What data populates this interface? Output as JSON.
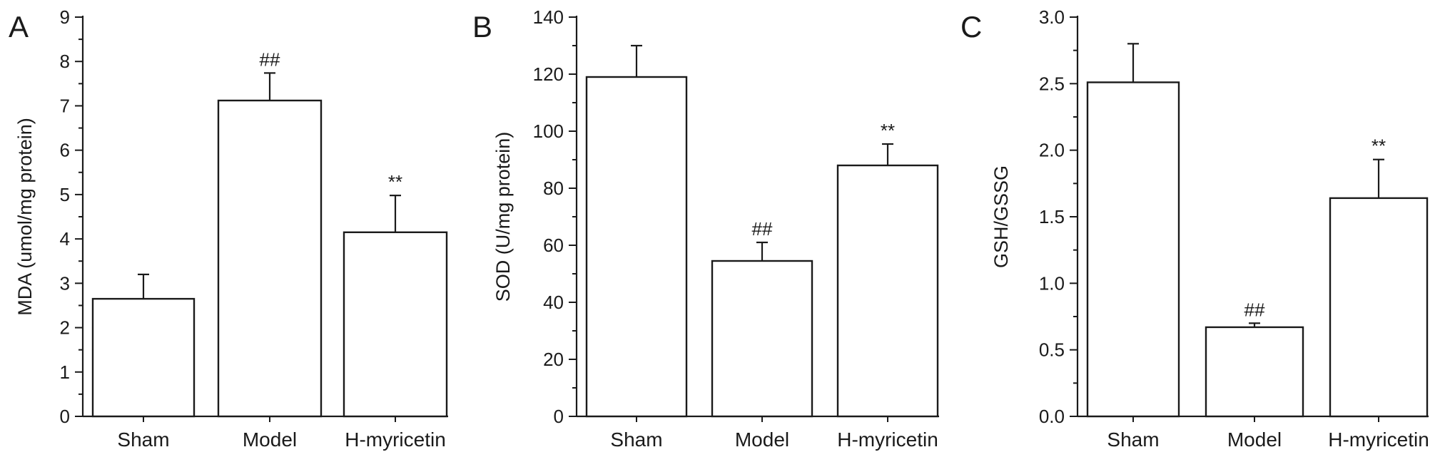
{
  "chart_data": [
    {
      "type": "bar",
      "panel": "A",
      "ylabel": "MDA (umol/mg protein)",
      "ylim": [
        0,
        9
      ],
      "yticks": [
        "0",
        "1",
        "2",
        "3",
        "4",
        "5",
        "6",
        "7",
        "8",
        "9"
      ],
      "categories": [
        "Sham",
        "Model",
        "H-myricetin"
      ],
      "values": [
        2.65,
        7.12,
        4.15
      ],
      "errors": [
        0.55,
        0.62,
        0.83
      ],
      "annotations": [
        "",
        "##",
        "**"
      ]
    },
    {
      "type": "bar",
      "panel": "B",
      "ylabel": "SOD (U/mg protein)",
      "ylim": [
        0,
        140
      ],
      "yticks": [
        "0",
        "20",
        "40",
        "60",
        "80",
        "100",
        "120",
        "140"
      ],
      "categories": [
        "Sham",
        "Model",
        "H-myricetin"
      ],
      "values": [
        119,
        54.5,
        88
      ],
      "errors": [
        11,
        6.5,
        7.5
      ],
      "annotations": [
        "",
        "##",
        "**"
      ]
    },
    {
      "type": "bar",
      "panel": "C",
      "ylabel": "GSH/GSSG",
      "ylim": [
        0,
        3.0
      ],
      "yticks": [
        "0.0",
        "0.5",
        "1.0",
        "1.5",
        "2.0",
        "2.5",
        "3.0"
      ],
      "categories": [
        "Sham",
        "Model",
        "H-myricetin"
      ],
      "values": [
        2.51,
        0.67,
        1.64
      ],
      "errors": [
        0.29,
        0.03,
        0.29
      ],
      "annotations": [
        "",
        "##",
        "**"
      ]
    }
  ]
}
